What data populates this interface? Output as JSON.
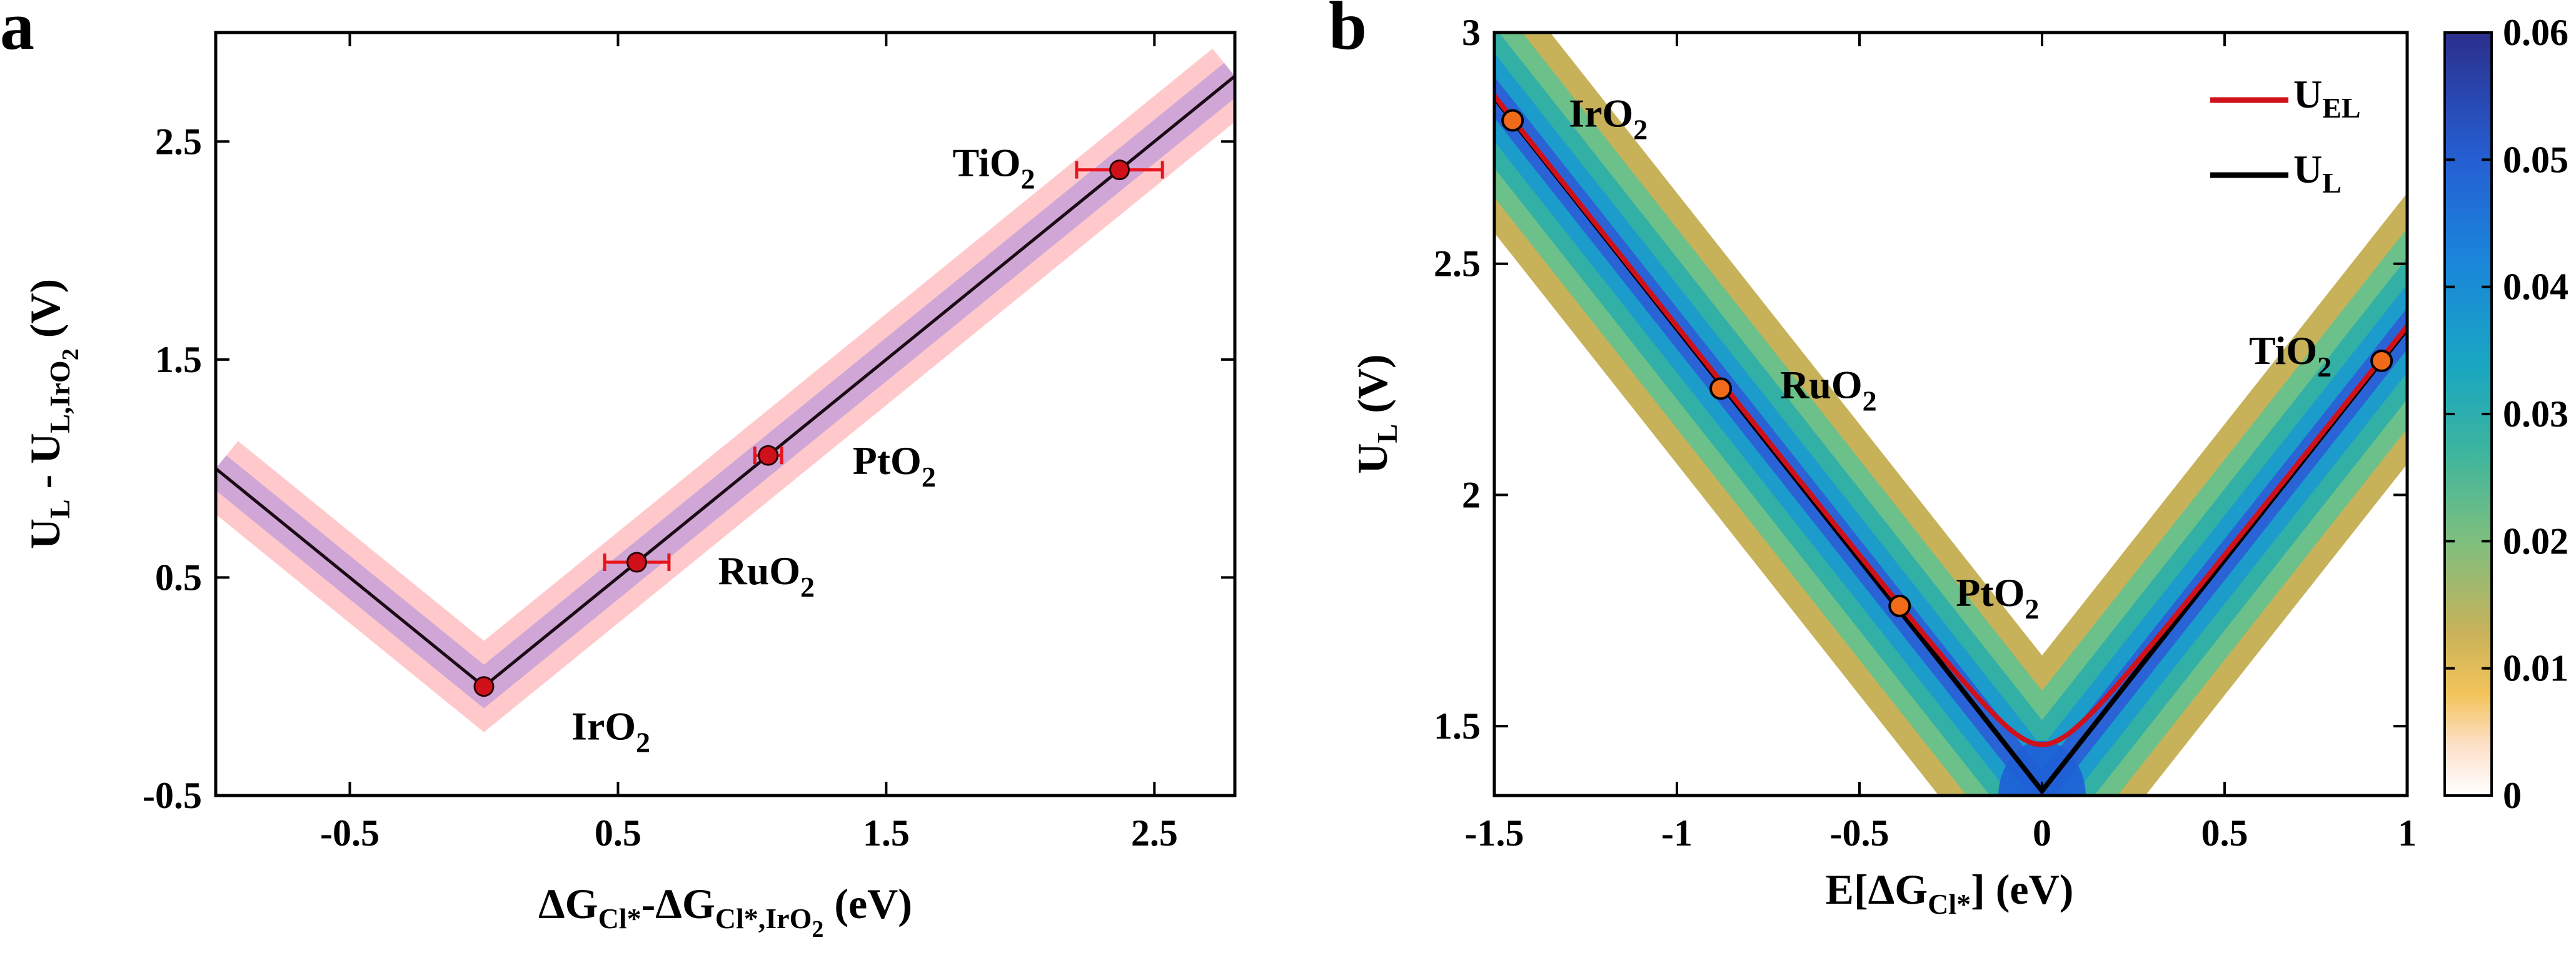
{
  "chart_data": [
    {
      "panel_label": "a",
      "type": "line",
      "xlim": [
        -1,
        2.8
      ],
      "ylim": [
        -0.5,
        3.0
      ],
      "x_ticks": [
        "-0.5",
        "0.5",
        "1.5",
        "2.5"
      ],
      "x_tick_values": [
        -0.5,
        0.5,
        1.5,
        2.5
      ],
      "y_ticks": [
        "-0.5",
        "0.5",
        "1.5",
        "2.5"
      ],
      "y_tick_values": [
        -0.5,
        0.5,
        1.5,
        2.5
      ],
      "xlabel": {
        "main": "ΔG",
        "sub1": "Cl*",
        "mid": "-ΔG",
        "sub2": "Cl*,IrO",
        "sub2b": "2",
        "tail": " (eV)"
      },
      "ylabel": {
        "main": "U",
        "sub1": "L",
        "mid": " - U",
        "sub2": "L,IrO",
        "sub2b": "2",
        "tail": " (V)"
      },
      "line": {
        "x": [
          -1,
          0,
          2.8
        ],
        "y": [
          1.0,
          0.0,
          2.8
        ],
        "color": "#1a0a14"
      },
      "bands": [
        {
          "halfwidth": 0.23,
          "color": "#ffc9cc"
        },
        {
          "halfwidth": 0.11,
          "color": "#cfa6d6"
        }
      ],
      "points": [
        {
          "label": "IrO",
          "sub": "2",
          "x": 0.0,
          "y": 0.0,
          "xerr": 0
        },
        {
          "label": "RuO",
          "sub": "2",
          "x": 0.57,
          "y": 0.57,
          "xerr": 0.12
        },
        {
          "label": "PtO",
          "sub": "2",
          "x": 1.06,
          "y": 1.06,
          "xerr": 0.05
        },
        {
          "label": "TiO",
          "sub": "2",
          "x": 2.37,
          "y": 2.37,
          "xerr": 0.16
        }
      ],
      "point_color": "#d0111b",
      "errorbar_color": "#e8141c"
    },
    {
      "panel_label": "b",
      "type": "heatmap",
      "xlim": [
        -1.5,
        1.0
      ],
      "ylim": [
        1.35,
        3.0
      ],
      "x_ticks": [
        "-1.5",
        "-1",
        "-0.5",
        "0",
        "0.5",
        "1"
      ],
      "x_tick_values": [
        -1.5,
        -1.0,
        -0.5,
        0.0,
        0.5,
        1.0
      ],
      "y_ticks": [
        "1.5",
        "2",
        "2.5",
        "3"
      ],
      "y_tick_values": [
        1.5,
        2.0,
        2.5,
        3.0
      ],
      "xlabel": {
        "main": "E[ΔG",
        "sub1": "Cl*",
        "tail": "] (eV)"
      },
      "ylabel": {
        "main": "U",
        "sub1": "L",
        "tail": " (V)"
      },
      "legend": [
        {
          "label": "U",
          "sub": "EL",
          "color": "#d0111b"
        },
        {
          "label": "U",
          "sub": "L",
          "color": "#000000"
        }
      ],
      "UL_base": 1.36,
      "UEL_min": 1.46,
      "points": [
        {
          "label": "IrO",
          "sub": "2",
          "x": -1.45,
          "y": 2.81
        },
        {
          "label": "RuO",
          "sub": "2",
          "x": -0.88,
          "y": 2.23
        },
        {
          "label": "PtO",
          "sub": "2",
          "x": -0.39,
          "y": 1.76
        },
        {
          "label": "TiO",
          "sub": "2",
          "x": 0.93,
          "y": 2.29
        }
      ],
      "point_color": "#f06a1a",
      "contour_levels": [
        {
          "halfwidth": 0.23,
          "color": "#c7b25a"
        },
        {
          "halfwidth": 0.17,
          "color": "#6cc08a"
        },
        {
          "halfwidth": 0.12,
          "color": "#33b0a6"
        },
        {
          "halfwidth": 0.075,
          "color": "#1b9ccb"
        },
        {
          "halfwidth": 0.035,
          "color": "#2a63d6"
        }
      ],
      "colorbar": {
        "range": [
          0,
          0.06
        ],
        "ticks": [
          "0",
          "0.01",
          "0.02",
          "0.03",
          "0.04",
          "0.05",
          "0.06"
        ],
        "tick_values": [
          0,
          0.01,
          0.02,
          0.03,
          0.04,
          0.05,
          0.06
        ],
        "stops": [
          {
            "v": 0.0,
            "color": "#ffffff"
          },
          {
            "v": 0.004,
            "color": "#fde0c8"
          },
          {
            "v": 0.008,
            "color": "#f3c35a"
          },
          {
            "v": 0.013,
            "color": "#c7b25a"
          },
          {
            "v": 0.02,
            "color": "#7ebf7e"
          },
          {
            "v": 0.027,
            "color": "#3db59e"
          },
          {
            "v": 0.034,
            "color": "#19a6c3"
          },
          {
            "v": 0.042,
            "color": "#1a86da"
          },
          {
            "v": 0.05,
            "color": "#255fd3"
          },
          {
            "v": 0.06,
            "color": "#2c2f8c"
          }
        ]
      }
    }
  ]
}
